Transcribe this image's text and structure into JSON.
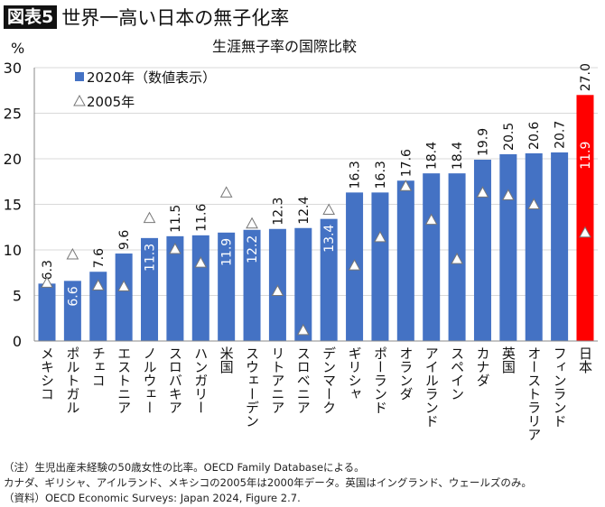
{
  "header": {
    "badge": "図表5",
    "title": "世界一高い日本の無子化率"
  },
  "chart_data": {
    "type": "bar",
    "title": "生涯無子率の国際比較",
    "ylabel": "%",
    "ylim": [
      0,
      30
    ],
    "yticks": [
      0,
      5,
      10,
      15,
      20,
      25,
      30
    ],
    "grid": true,
    "legend_position": "top-left",
    "categories": [
      "メキシコ",
      "ポルトガル",
      "チェコ",
      "エストニア",
      "ノルウェー",
      "スロバキア",
      "ハンガリー",
      "米国",
      "スウェーデン",
      "リトアニア",
      "スロベニア",
      "デンマーク",
      "ギリシャ",
      "ポーランド",
      "オランダ",
      "アイルランド",
      "スペイン",
      "カナダ",
      "英国",
      "オーストラリア",
      "フィンランド",
      "日本"
    ],
    "series": [
      {
        "name": "2020年（数値表示）",
        "marker": "bar",
        "color": "#4472C4",
        "highlight_color": "#FF0000",
        "values": [
          6.3,
          6.6,
          7.6,
          9.6,
          11.3,
          11.5,
          11.6,
          11.9,
          12.2,
          12.3,
          12.4,
          13.4,
          16.3,
          16.3,
          17.6,
          18.4,
          18.4,
          19.9,
          20.5,
          20.6,
          20.7,
          27.0
        ],
        "labels": [
          "6.3",
          "6.6",
          "7.6",
          "9.6",
          "11.3",
          "11.5",
          "11.6",
          "11.9",
          "12.2",
          "12.3",
          "12.4",
          "13.4",
          "16.3",
          "16.3",
          "17.6",
          "18.4",
          "18.4",
          "19.9",
          "20.5",
          "20.6",
          "20.7",
          "27.0"
        ]
      },
      {
        "name": "2005年",
        "marker": "triangle",
        "values": [
          6.4,
          9.5,
          6.1,
          6.0,
          13.5,
          10.1,
          8.6,
          16.3,
          12.9,
          5.5,
          1.2,
          14.4,
          8.3,
          11.4,
          17.0,
          13.3,
          9.0,
          16.3,
          16.0,
          15.0,
          null,
          11.9
        ],
        "japan_label": "11.9"
      }
    ]
  },
  "notes": [
    "（注）生児出産未経験の50歳女性の比率。OECD Family Databaseによる。",
    "カナダ、ギリシャ、アイルランド、メキシコの2005年は2000年データ。英国はイングランド、ウェールズのみ。",
    "（資料）OECD Economic Surveys: Japan 2024, Figure 2.7."
  ]
}
